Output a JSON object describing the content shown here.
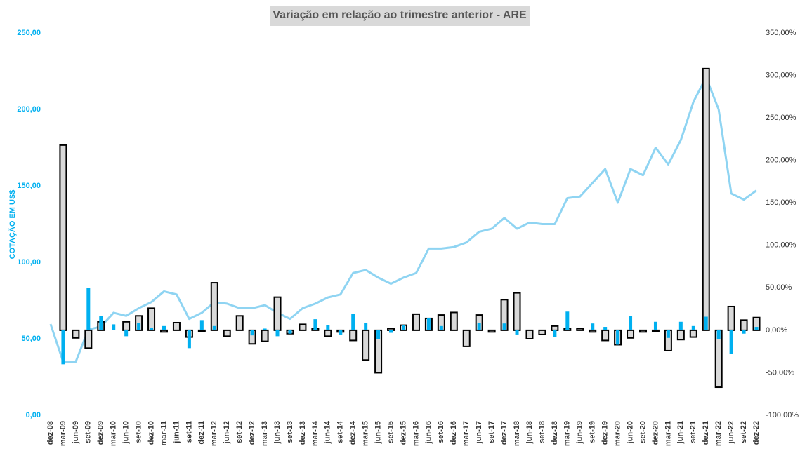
{
  "chart_data": {
    "type": "bar",
    "title": "Variação em relação ao trimestre anterior - ARE",
    "y_label": "COTAÇÃO EM US$",
    "categories": [
      "dez-08",
      "mar-09",
      "jun-09",
      "set-09",
      "dez-09",
      "mar-10",
      "jun-10",
      "set-10",
      "dez-10",
      "mar-11",
      "jun-11",
      "set-11",
      "dez-11",
      "mar-12",
      "jun-12",
      "set-12",
      "dez-12",
      "mar-13",
      "jun-13",
      "set-13",
      "dez-13",
      "mar-14",
      "jun-14",
      "set-14",
      "dez-14",
      "mar-15",
      "jun-15",
      "set-15",
      "dez-15",
      "mar-16",
      "jun-16",
      "set-16",
      "dez-16",
      "mar-17",
      "jun-17",
      "set-17",
      "dez-17",
      "mar-18",
      "jun-18",
      "set-18",
      "dez-18",
      "mar-19",
      "jun-19",
      "set-19",
      "dez-19",
      "mar-20",
      "jun-20",
      "set-20",
      "dez-20",
      "mar-21",
      "jun-21",
      "set-21",
      "dez-21",
      "mar-22",
      "jun-22",
      "set-22",
      "dez-22"
    ],
    "series": [
      {
        "type": "line",
        "color": "#8fd4f2",
        "axis": "y",
        "values": [
          59.6,
          35,
          35,
          56,
          58,
          67,
          65,
          70,
          74,
          81,
          79,
          63,
          67,
          74,
          73,
          70,
          70,
          72,
          67,
          63,
          70,
          73,
          77,
          79,
          93,
          95,
          90,
          86,
          90,
          93,
          109,
          109,
          110,
          113,
          120,
          122,
          129,
          122,
          126,
          125,
          125,
          142,
          143,
          152,
          161,
          139,
          161,
          157,
          175,
          164,
          180,
          205,
          221,
          200,
          145,
          141,
          147
        ]
      },
      {
        "type": "bar",
        "color": "#d9d9d9",
        "stroke": "#000000",
        "axis": "y2",
        "values": [
          null,
          218,
          -9,
          -21,
          10,
          0,
          10,
          17,
          26,
          -2,
          9,
          -8,
          -1,
          56,
          -7,
          17,
          -16,
          -13,
          39,
          -4,
          7,
          2,
          -7,
          -2,
          -12,
          -35,
          -50,
          2,
          6,
          19,
          14,
          18,
          21,
          -19,
          18,
          -2,
          36,
          44,
          -10,
          -5,
          5,
          2,
          2,
          -2,
          -12,
          -17,
          -9,
          -2,
          -1,
          -24,
          -11,
          -8,
          308,
          -67,
          28,
          12,
          15
        ]
      },
      {
        "type": "bar",
        "color": "#00b0f0",
        "axis": "y2",
        "values": [
          null,
          -40,
          0,
          50,
          17,
          7,
          -7,
          9,
          3,
          5,
          0,
          -21,
          12,
          5,
          0,
          0,
          -6,
          2,
          -7,
          -4,
          0,
          13,
          6,
          -5,
          19,
          9,
          -10,
          -3,
          6,
          0,
          14,
          5,
          0,
          0,
          9,
          0,
          8,
          -5,
          0,
          0,
          -8,
          22,
          0,
          8,
          4,
          -17,
          17,
          0,
          10,
          -9,
          10,
          5,
          16,
          -10,
          -28,
          -4,
          4
        ]
      }
    ],
    "ylim": [
      0,
      250
    ],
    "yticks": [
      {
        "value": 0,
        "label": "0,00"
      },
      {
        "value": 50,
        "label": "50,00"
      },
      {
        "value": 100,
        "label": "100,00"
      },
      {
        "value": 150,
        "label": "150,00"
      },
      {
        "value": 200,
        "label": "200,00"
      },
      {
        "value": 250,
        "label": "250,00"
      }
    ],
    "y2lim": [
      -100,
      350
    ],
    "y2ticks": [
      {
        "value": -100,
        "label": "-100,00%"
      },
      {
        "value": -50,
        "label": "-50,00%"
      },
      {
        "value": 0,
        "label": "0,00%"
      },
      {
        "value": 50,
        "label": "50,00%"
      },
      {
        "value": 100,
        "label": "100,00%"
      },
      {
        "value": 150,
        "label": "150,00%"
      },
      {
        "value": 200,
        "label": "200,00%"
      },
      {
        "value": 250,
        "label": "250,00%"
      },
      {
        "value": 300,
        "label": "300,00%"
      },
      {
        "value": 350,
        "label": "350,00%"
      }
    ],
    "grid": false
  }
}
